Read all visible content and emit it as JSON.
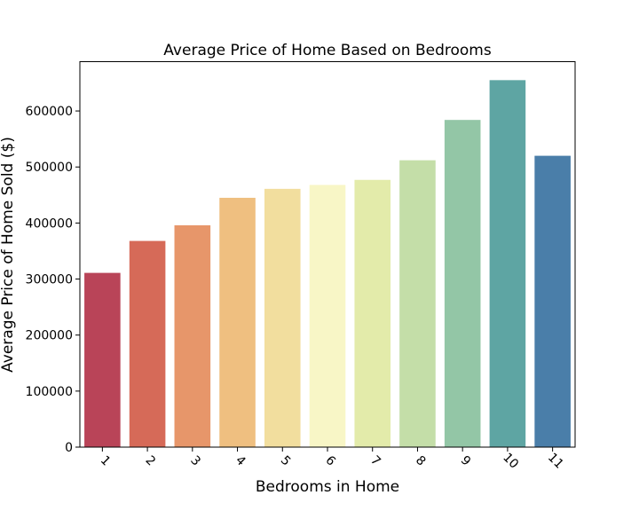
{
  "chart_data": {
    "type": "bar",
    "title": "Average Price of Home Based on Bedrooms",
    "xlabel": "Bedrooms in Home",
    "ylabel": "Average Price of Home Sold ($)",
    "categories": [
      "1",
      "2",
      "3",
      "4",
      "5",
      "6",
      "7",
      "8",
      "9",
      "10",
      "11"
    ],
    "values": [
      311000,
      368000,
      396000,
      445000,
      461000,
      468000,
      477000,
      512000,
      584000,
      655000,
      520000
    ],
    "colors": [
      "#b94458",
      "#d66a58",
      "#e7966a",
      "#efbf80",
      "#f2de9e",
      "#f8f6c6",
      "#e3ebaa",
      "#c4dea8",
      "#93c6a6",
      "#5ea5a3",
      "#4a7ea9"
    ],
    "ylim": [
      0,
      688000
    ],
    "yticks": [
      0,
      100000,
      200000,
      300000,
      400000,
      500000,
      600000
    ],
    "ytick_labels": [
      "0",
      "100000",
      "200000",
      "300000",
      "400000",
      "500000",
      "600000"
    ],
    "xtick_rotation": 45,
    "grid": false
  }
}
